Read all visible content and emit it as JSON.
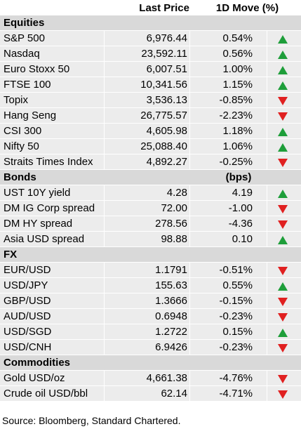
{
  "header": {
    "last_price": "Last Price",
    "move": "1D Move (%)"
  },
  "sections": [
    {
      "title": "Equities",
      "note": "",
      "rows": [
        {
          "name": "S&P 500",
          "price": "6,976.44",
          "move": "0.54%",
          "dir": "up"
        },
        {
          "name": "Nasdaq",
          "price": "23,592.11",
          "move": "0.56%",
          "dir": "up"
        },
        {
          "name": "Euro Stoxx 50",
          "price": "6,007.51",
          "move": "1.00%",
          "dir": "up"
        },
        {
          "name": "FTSE 100",
          "price": "10,341.56",
          "move": "1.15%",
          "dir": "up"
        },
        {
          "name": "Topix",
          "price": "3,536.13",
          "move": "-0.85%",
          "dir": "down"
        },
        {
          "name": "Hang Seng",
          "price": "26,775.57",
          "move": "-2.23%",
          "dir": "down"
        },
        {
          "name": "CSI 300",
          "price": "4,605.98",
          "move": "1.18%",
          "dir": "up"
        },
        {
          "name": "Nifty 50",
          "price": "25,088.40",
          "move": "1.06%",
          "dir": "up"
        },
        {
          "name": "Straits Times Index",
          "price": "4,892.27",
          "move": "-0.25%",
          "dir": "down"
        }
      ]
    },
    {
      "title": "Bonds",
      "note": "(bps)",
      "rows": [
        {
          "name": "UST 10Y yield",
          "price": "4.28",
          "move": "4.19",
          "dir": "up"
        },
        {
          "name": "DM IG Corp spread",
          "price": "72.00",
          "move": "-1.00",
          "dir": "down"
        },
        {
          "name": "DM HY spread",
          "price": "278.56",
          "move": "-4.36",
          "dir": "down"
        },
        {
          "name": "Asia USD spread",
          "price": "98.88",
          "move": "0.10",
          "dir": "up"
        }
      ]
    },
    {
      "title": "FX",
      "note": "",
      "rows": [
        {
          "name": "EUR/USD",
          "price": "1.1791",
          "move": "-0.51%",
          "dir": "down"
        },
        {
          "name": "USD/JPY",
          "price": "155.63",
          "move": "0.55%",
          "dir": "up"
        },
        {
          "name": "GBP/USD",
          "price": "1.3666",
          "move": "-0.15%",
          "dir": "down"
        },
        {
          "name": "AUD/USD",
          "price": "0.6948",
          "move": "-0.23%",
          "dir": "down"
        },
        {
          "name": "USD/SGD",
          "price": "1.2722",
          "move": "0.15%",
          "dir": "up"
        },
        {
          "name": "USD/CNH",
          "price": "6.9426",
          "move": "-0.23%",
          "dir": "down"
        }
      ]
    },
    {
      "title": "Commodities",
      "note": "",
      "rows": [
        {
          "name": "Gold USD/oz",
          "price": "4,661.38",
          "move": "-4.76%",
          "dir": "down"
        },
        {
          "name": "Crude oil USD/bbl",
          "price": "62.14",
          "move": "-4.71%",
          "dir": "down"
        }
      ]
    }
  ],
  "source": "Source: Bloomberg, Standard Chartered.",
  "colors": {
    "up": "#1e9e3a",
    "down": "#e02020"
  }
}
